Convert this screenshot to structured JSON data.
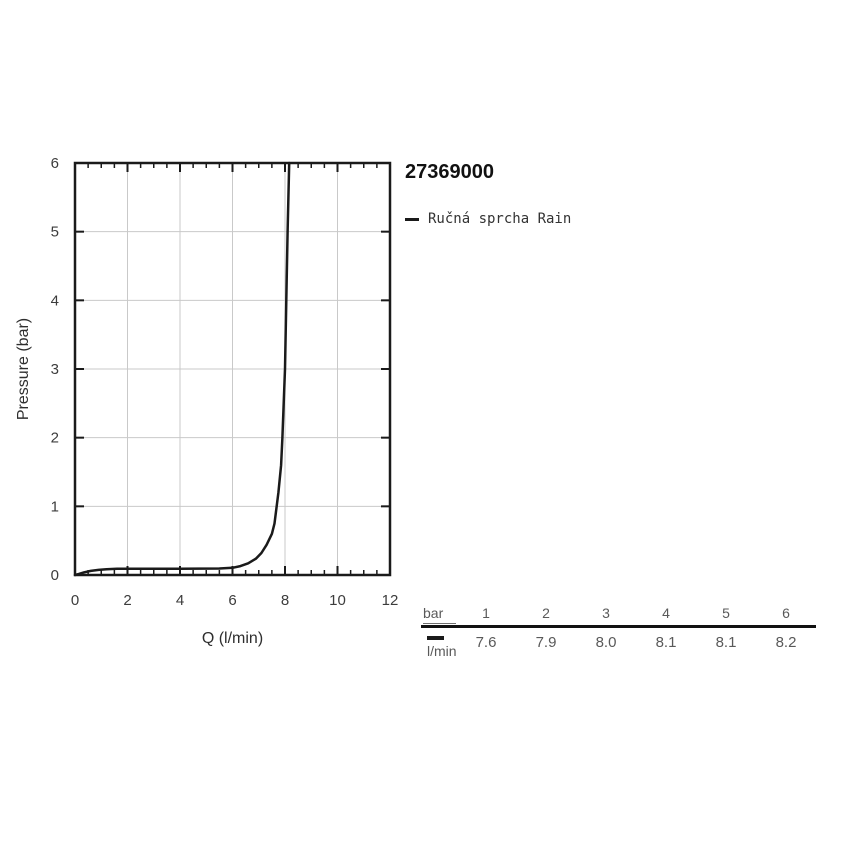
{
  "header": {
    "title": "27369000"
  },
  "legend": {
    "label": "Ručná sprcha Rain",
    "marker_color": "#1a1a1a"
  },
  "chart_data": {
    "type": "line",
    "title": "27369000",
    "xlabel": "Q (l/min)",
    "ylabel": "Pressure (bar)",
    "xlim": [
      0,
      12
    ],
    "ylim": [
      0,
      6
    ],
    "x_major_ticks": [
      0,
      2,
      4,
      6,
      8,
      10,
      12
    ],
    "x_tick_labels": [
      "0",
      "2",
      "4",
      "6",
      "8",
      "10",
      "12"
    ],
    "x_minor_step": 0.5,
    "y_major_ticks": [
      0,
      1,
      2,
      3,
      4,
      5,
      6
    ],
    "y_tick_labels": [
      "0",
      "1",
      "2",
      "3",
      "4",
      "5",
      "6"
    ],
    "x_grid_lines": [
      2,
      4,
      6,
      8,
      10
    ],
    "y_grid_lines": [
      1,
      2,
      3,
      4,
      5
    ],
    "grid": true,
    "legend_position": "top-right-outside",
    "series": [
      {
        "name": "Ručná sprcha Rain",
        "color": "#1a1a1a",
        "points": [
          [
            0,
            0
          ],
          [
            0.15,
            0.015
          ],
          [
            0.35,
            0.04
          ],
          [
            0.6,
            0.06
          ],
          [
            0.9,
            0.075
          ],
          [
            1.2,
            0.085
          ],
          [
            1.6,
            0.09
          ],
          [
            2.5,
            0.09
          ],
          [
            4.0,
            0.09
          ],
          [
            5.5,
            0.095
          ],
          [
            6.0,
            0.105
          ],
          [
            6.3,
            0.13
          ],
          [
            6.6,
            0.17
          ],
          [
            6.9,
            0.24
          ],
          [
            7.1,
            0.32
          ],
          [
            7.3,
            0.44
          ],
          [
            7.5,
            0.6
          ],
          [
            7.6,
            0.75
          ],
          [
            7.65,
            0.9
          ],
          [
            7.75,
            1.2
          ],
          [
            7.85,
            1.6
          ],
          [
            7.9,
            2.0
          ],
          [
            7.95,
            2.5
          ],
          [
            8.0,
            3.0
          ],
          [
            8.05,
            4.0
          ],
          [
            8.1,
            5.0
          ],
          [
            8.13,
            5.5
          ],
          [
            8.16,
            6.0
          ]
        ]
      }
    ],
    "pressure_flow_table": {
      "bar": [
        1,
        2,
        3,
        4,
        5,
        6
      ],
      "l_min": [
        7.6,
        7.9,
        8.0,
        8.1,
        8.1,
        8.2
      ]
    }
  },
  "table": {
    "header_label": "bar",
    "row_label": "l/min",
    "bar_values": [
      "1",
      "2",
      "3",
      "4",
      "5",
      "6"
    ],
    "flow_values": [
      "7.6",
      "7.9",
      "8.0",
      "8.1",
      "8.1",
      "8.2"
    ]
  },
  "colors": {
    "curve": "#1a1a1a",
    "frame": "#1a1a1a",
    "grid": "#c9c9c9",
    "tick_label": "#3c3c3c",
    "axis_label": "#2e2e2e",
    "table_text": "#595959",
    "table_rule": "#111111",
    "background": "#ffffff"
  }
}
